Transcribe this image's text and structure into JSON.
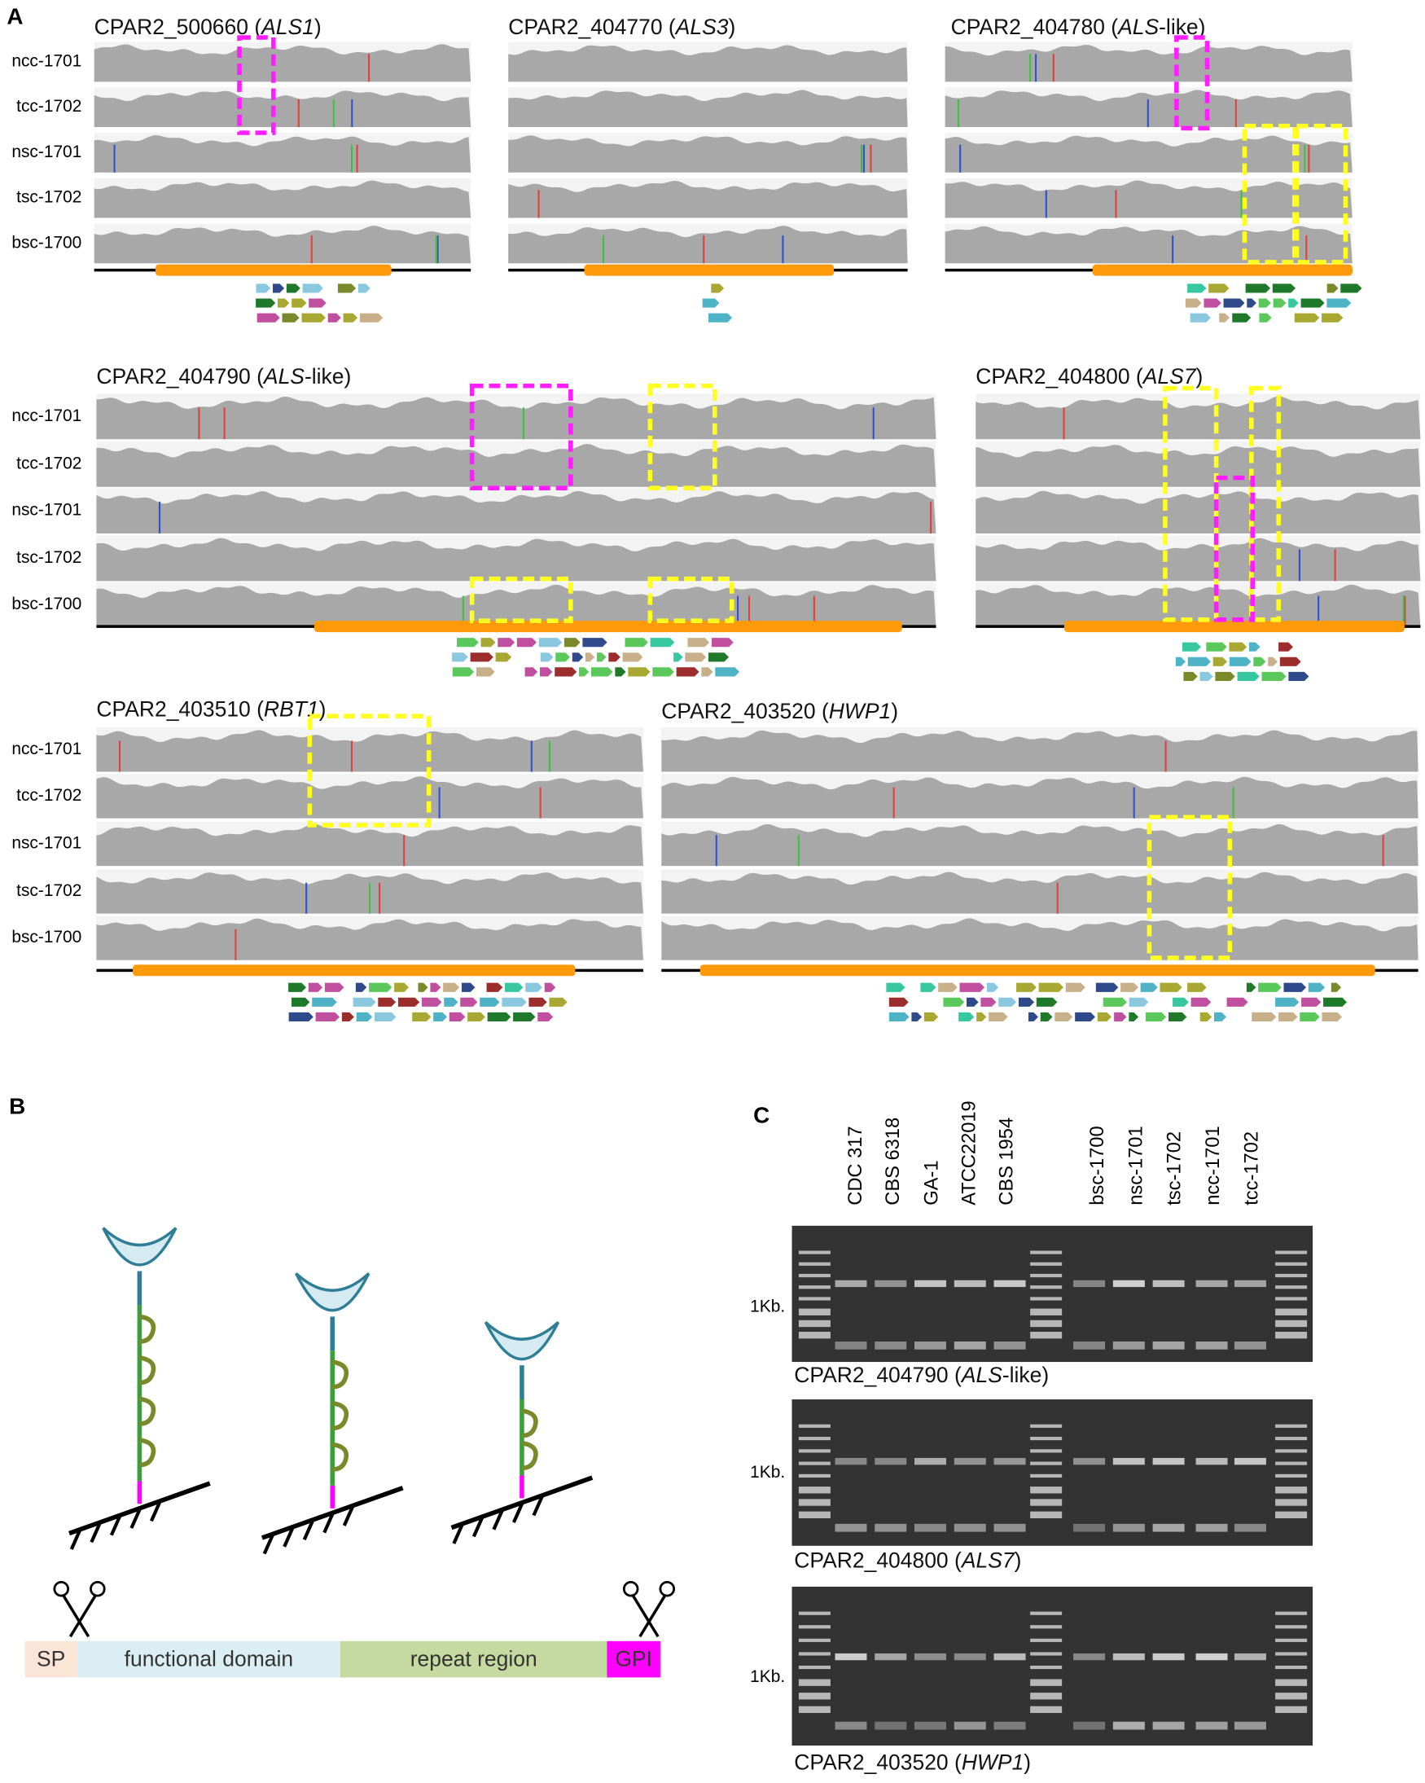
{
  "panel_a": {
    "label": "A",
    "sample_labels": [
      "ncc-1701",
      "tcc-1702",
      "nsc-1701",
      "tsc-1702",
      "bsc-1700"
    ],
    "genes": [
      {
        "prefix": "CPAR2_500660 (",
        "italic": "ALS1",
        "suffix": ")"
      },
      {
        "prefix": "CPAR2_404770 (",
        "italic": "ALS3",
        "suffix": ")"
      },
      {
        "prefix": "CPAR2_404780 (",
        "italic": "ALS",
        "suffix": "-like)"
      },
      {
        "prefix": "CPAR2_404790 (",
        "italic": "ALS",
        "suffix": "-like)"
      },
      {
        "prefix": "CPAR2_404800 (",
        "italic": "ALS7",
        "suffix": ")"
      },
      {
        "prefix": "CPAR2_403510 (",
        "italic": "RBT1",
        "suffix": ")"
      },
      {
        "prefix": "CPAR2_403520 (",
        "italic": "HWP1",
        "suffix": ")"
      }
    ]
  },
  "panel_b": {
    "label": "B",
    "segments": [
      "SP",
      "functional domain",
      "repeat region",
      "GPI"
    ]
  },
  "panel_c": {
    "label": "C",
    "lanes": [
      "CDC 317",
      "CBS 6318",
      "GA-1",
      "ATCC22019",
      "CBS 1954",
      "bsc-1700",
      "nsc-1701",
      "tsc-1702",
      "ncc-1701",
      "tcc-1702"
    ],
    "size_marker": "1Kb.",
    "gels": [
      {
        "prefix": "CPAR2_404790 (",
        "italic": "ALS",
        "suffix": "-like)"
      },
      {
        "prefix": "CPAR2_404800 (",
        "italic": "ALS7",
        "suffix": ")"
      },
      {
        "prefix": "CPAR2_403520 (",
        "italic": "HWP1",
        "suffix": ")"
      }
    ]
  }
}
